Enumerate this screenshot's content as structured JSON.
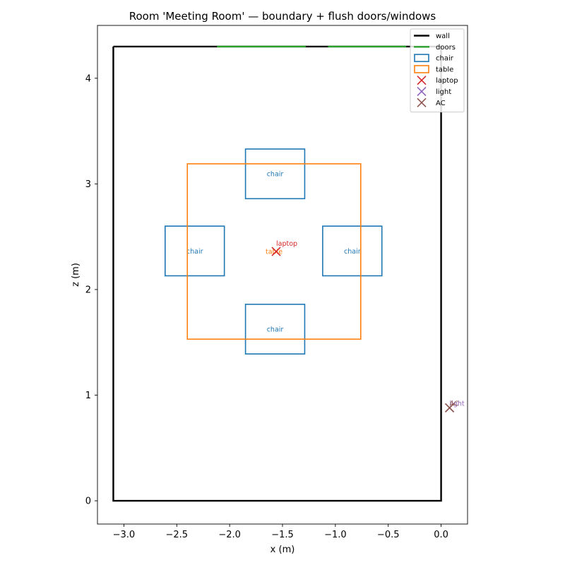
{
  "chart_data": {
    "type": "scatter",
    "title": "Room 'Meeting Room' — boundary + flush doors/windows",
    "xlabel": "x (m)",
    "ylabel": "z (m)",
    "xlim": [
      -3.25,
      0.25
    ],
    "ylim": [
      -0.22,
      4.5
    ],
    "xticks": [
      "−3.0",
      "−2.5",
      "−2.0",
      "−1.5",
      "−1.0",
      "−0.5",
      "0.0"
    ],
    "xtick_values": [
      -3.0,
      -2.5,
      -2.0,
      -1.5,
      -1.0,
      -0.5,
      0.0
    ],
    "yticks": [
      "0",
      "1",
      "2",
      "3",
      "4"
    ],
    "ytick_values": [
      0,
      1,
      2,
      3,
      4
    ],
    "legend_position": "top-right",
    "series": [
      {
        "name": "wall",
        "kind": "line",
        "color": "#000000",
        "points": [
          [
            -3.1,
            4.3
          ],
          [
            -3.1,
            0.0
          ],
          [
            0.0,
            0.0
          ],
          [
            0.0,
            4.3
          ],
          [
            -3.1,
            4.3
          ]
        ]
      },
      {
        "name": "doors",
        "kind": "segments",
        "color": "#2ca02c",
        "segments": [
          [
            [
              -2.12,
              4.3
            ],
            [
              -1.28,
              4.3
            ]
          ],
          [
            [
              -1.07,
              4.3
            ],
            [
              -0.33,
              4.3
            ]
          ]
        ]
      },
      {
        "name": "chair",
        "kind": "rect",
        "color": "#1f77b4",
        "rects": [
          {
            "x": [
              -1.85,
              -1.29
            ],
            "z": [
              2.86,
              3.33
            ],
            "label": "chair"
          },
          {
            "x": [
              -2.61,
              -2.05
            ],
            "z": [
              2.13,
              2.6
            ],
            "label": "chair"
          },
          {
            "x": [
              -1.12,
              -0.56
            ],
            "z": [
              2.13,
              2.6
            ],
            "label": "chair"
          },
          {
            "x": [
              -1.85,
              -1.29
            ],
            "z": [
              1.39,
              1.86
            ],
            "label": "chair"
          }
        ]
      },
      {
        "name": "table",
        "kind": "rect",
        "color": "#ff7f0e",
        "rects": [
          {
            "x": [
              -2.4,
              -0.76
            ],
            "z": [
              1.53,
              3.19
            ],
            "label": "table"
          }
        ]
      },
      {
        "name": "laptop",
        "kind": "marker",
        "color": "#d62728",
        "points": [
          {
            "x": -1.56,
            "z": 2.36,
            "label": "laptop"
          }
        ]
      },
      {
        "name": "light",
        "kind": "marker",
        "color": "#9467bd",
        "points": [
          {
            "x": 0.08,
            "z": 0.88,
            "label": "light"
          }
        ]
      },
      {
        "name": "AC",
        "kind": "marker",
        "color": "#8c564b",
        "points": [
          {
            "x": 0.08,
            "z": 0.88,
            "label": "AC"
          }
        ]
      }
    ]
  }
}
